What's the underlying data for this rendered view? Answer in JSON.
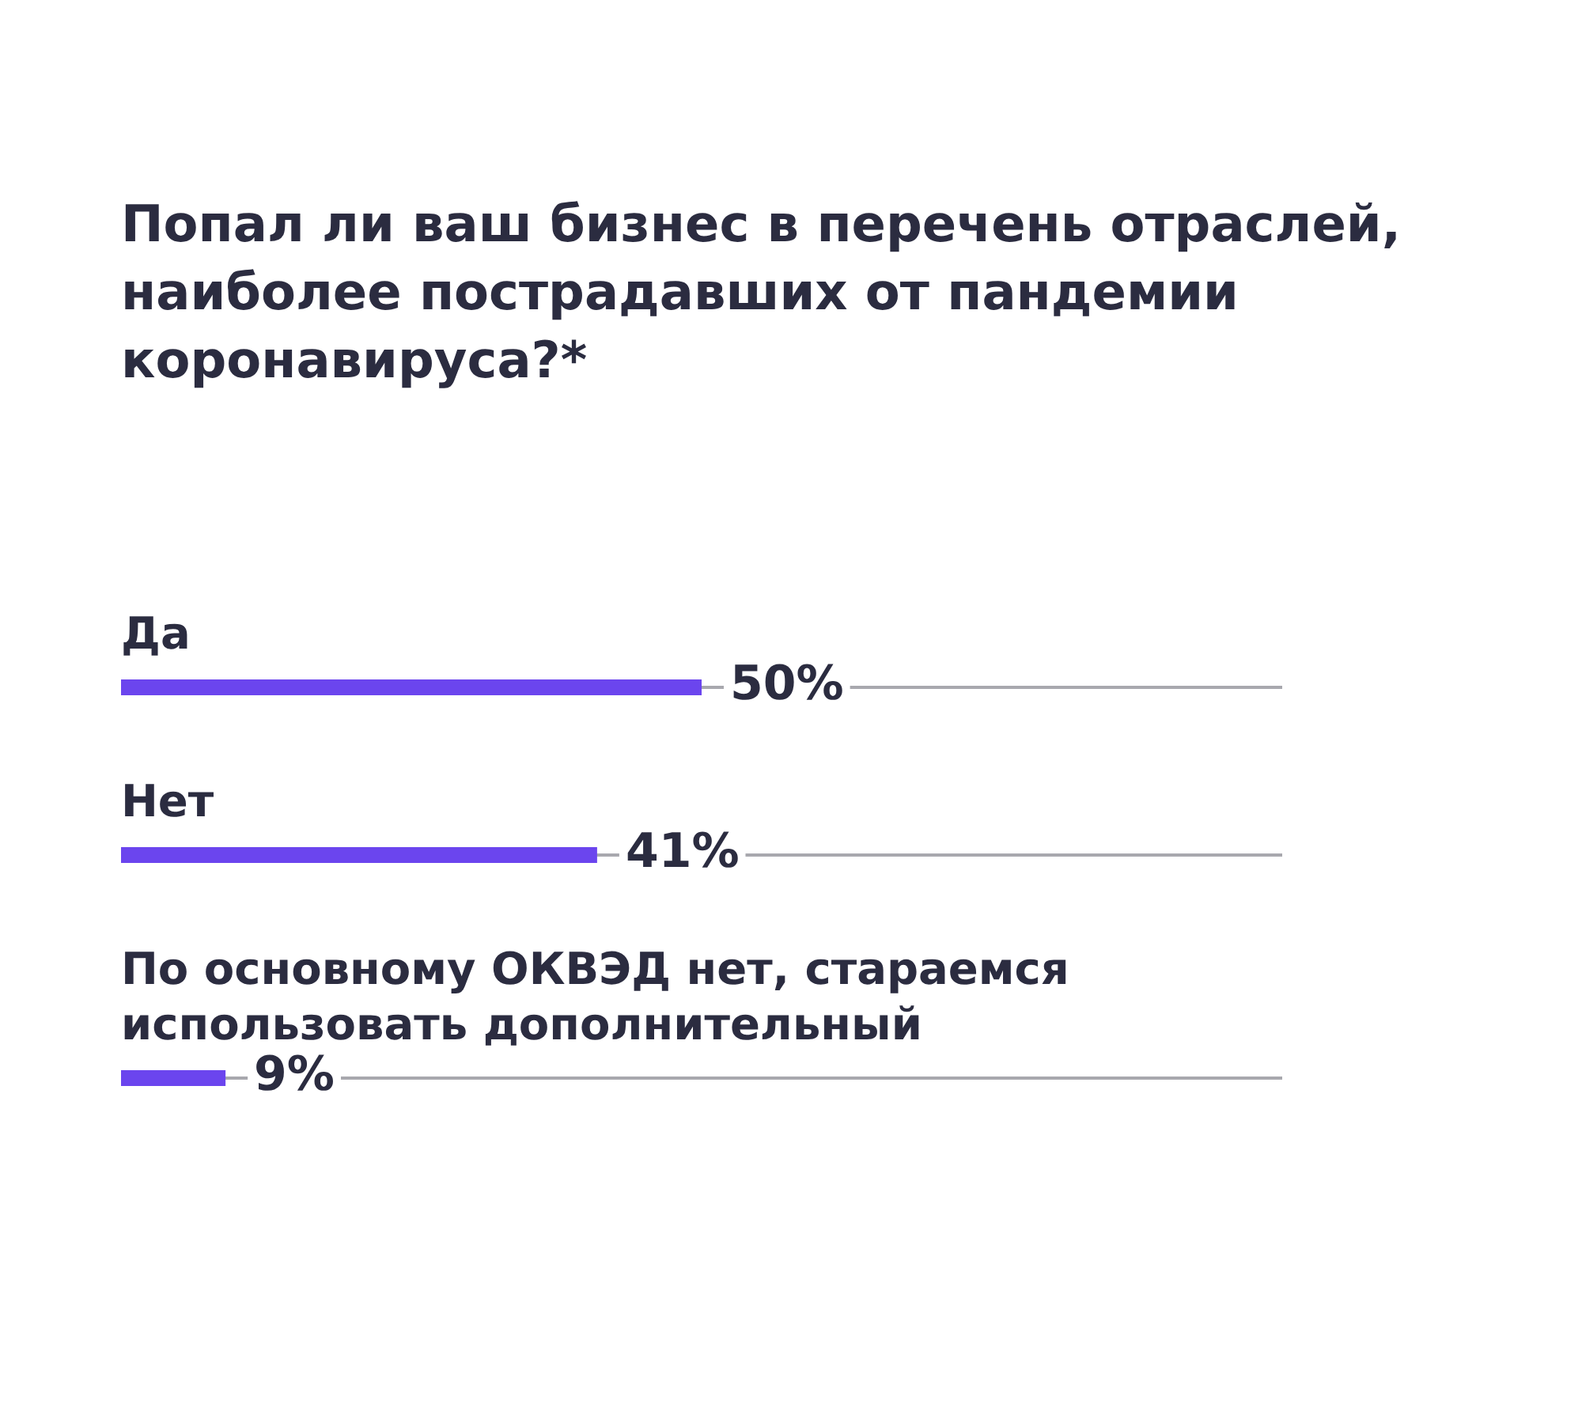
{
  "chart_data": {
    "type": "bar",
    "orientation": "horizontal",
    "title": "Попал ли ваш бизнес в перечень отраслей, наиболее пострадавших от пандемии коронавируса?*",
    "categories": [
      "Да",
      "Нет",
      "По основному ОКВЭД нет, стараемся использовать дополнительный"
    ],
    "values": [
      50,
      41,
      9
    ],
    "value_labels": [
      "50%",
      "41%",
      "9%"
    ],
    "color": "#6b45ee"
  }
}
